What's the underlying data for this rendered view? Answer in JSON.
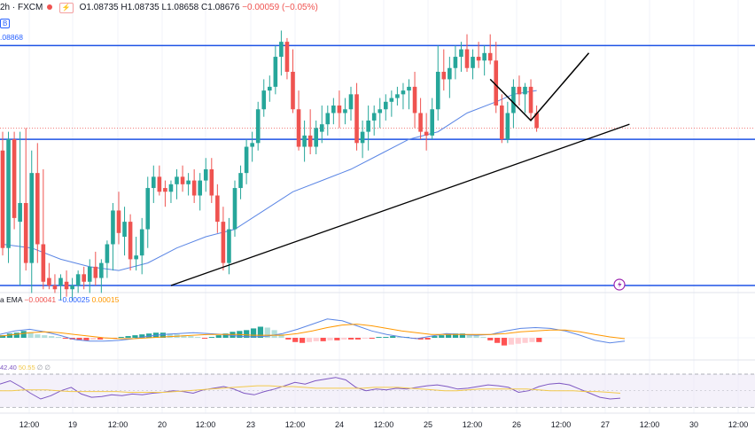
{
  "header": {
    "symbol_suffix": "2h · FXCM",
    "signal_icon": "lightning-badge",
    "open": "O1.08735",
    "high": "H1.08735",
    "low": "L1.08658",
    "close": "C1.08676",
    "change": "−0.00059 (−0.05%)"
  },
  "ema_badge": "B",
  "ema_value": ".08868",
  "macd_header": {
    "label": "a EMA",
    "macd": "−0.00041",
    "signal": "−0.00025",
    "hist": "0.00015"
  },
  "rsi_header": {
    "rsi": "42.40",
    "ma": "50.55",
    "extra": "∅ ∅"
  },
  "colors": {
    "up": "#26a69a",
    "down": "#ef5350",
    "hline": "#1e53e5",
    "ema": "#5b86e5",
    "trend": "#000000",
    "macd": "#5b86e5",
    "signal": "#ff9800",
    "rsi": "#7e57c2",
    "rsi_ma": "#f2c94c"
  },
  "chart_data": [
    {
      "type": "candlestick",
      "title": "",
      "price_range": [
        1.083,
        1.09
      ],
      "horizontal_levels": [
        1.0894,
        1.0869,
        1.083
      ],
      "candles": [
        [
          1.0866,
          1.0871,
          1.0838,
          1.084
        ],
        [
          1.084,
          1.0871,
          1.0836,
          1.0869
        ],
        [
          1.0869,
          1.0871,
          1.0845,
          1.0848
        ],
        [
          1.0847,
          1.0871,
          1.083,
          1.0852
        ],
        [
          1.0852,
          1.0872,
          1.0834,
          1.0836
        ],
        [
          1.0836,
          1.0866,
          1.0828,
          1.086
        ],
        [
          1.086,
          1.0868,
          1.0836,
          1.0841
        ],
        [
          1.0841,
          1.0861,
          1.0829,
          1.0831
        ],
        [
          1.0832,
          1.0836,
          1.0829,
          1.083
        ],
        [
          1.083,
          1.0833,
          1.0828,
          1.0829
        ],
        [
          1.083,
          1.0833,
          1.0826,
          1.0832
        ],
        [
          1.0831,
          1.0834,
          1.0827,
          1.0829
        ],
        [
          1.0829,
          1.0832,
          1.0826,
          1.083
        ],
        [
          1.083,
          1.0834,
          1.0828,
          1.0833
        ],
        [
          1.0833,
          1.0835,
          1.0829,
          1.0831
        ],
        [
          1.0831,
          1.0837,
          1.0828,
          1.0835
        ],
        [
          1.0835,
          1.0839,
          1.083,
          1.0832
        ],
        [
          1.0832,
          1.0837,
          1.0828,
          1.0836
        ],
        [
          1.0836,
          1.0842,
          1.0832,
          1.0841
        ],
        [
          1.0841,
          1.0852,
          1.0834,
          1.085
        ],
        [
          1.085,
          1.0855,
          1.0841,
          1.0844
        ],
        [
          1.0843,
          1.0851,
          1.0838,
          1.0847
        ],
        [
          1.0847,
          1.0849,
          1.0834,
          1.0837
        ],
        [
          1.0837,
          1.0843,
          1.0834,
          1.0838
        ],
        [
          1.0838,
          1.0848,
          1.0833,
          1.0845
        ],
        [
          1.0845,
          1.0859,
          1.084,
          1.0856
        ],
        [
          1.0856,
          1.0862,
          1.0852,
          1.0859
        ],
        [
          1.0859,
          1.0862,
          1.0854,
          1.0855
        ],
        [
          1.0856,
          1.0858,
          1.0851,
          1.0855
        ],
        [
          1.0855,
          1.0858,
          1.0852,
          1.0857
        ],
        [
          1.0857,
          1.0861,
          1.0853,
          1.0859
        ],
        [
          1.0859,
          1.0862,
          1.0855,
          1.0857
        ],
        [
          1.0857,
          1.086,
          1.0854,
          1.0858
        ],
        [
          1.0858,
          1.0861,
          1.0852,
          1.0854
        ],
        [
          1.0854,
          1.086,
          1.085,
          1.0858
        ],
        [
          1.0858,
          1.0864,
          1.0855,
          1.0861
        ],
        [
          1.0861,
          1.0864,
          1.0852,
          1.0854
        ],
        [
          1.0854,
          1.0857,
          1.0844,
          1.0847
        ],
        [
          1.0847,
          1.0851,
          1.0834,
          1.0836
        ],
        [
          1.0836,
          1.0848,
          1.0833,
          1.0845
        ],
        [
          1.0845,
          1.0858,
          1.0843,
          1.0856
        ],
        [
          1.0856,
          1.0862,
          1.0853,
          1.086
        ],
        [
          1.086,
          1.0869,
          1.0857,
          1.0867
        ],
        [
          1.0867,
          1.0871,
          1.0863,
          1.0868
        ],
        [
          1.0868,
          1.0879,
          1.0866,
          1.0877
        ],
        [
          1.0877,
          1.0885,
          1.0875,
          1.0882
        ],
        [
          1.0882,
          1.0886,
          1.0879,
          1.0883
        ],
        [
          1.0883,
          1.0894,
          1.0881,
          1.0891
        ],
        [
          1.0891,
          1.0898,
          1.0886,
          1.0895
        ],
        [
          1.0895,
          1.0896,
          1.0885,
          1.0887
        ],
        [
          1.0887,
          1.0893,
          1.0876,
          1.0877
        ],
        [
          1.0877,
          1.0882,
          1.0866,
          1.0867
        ],
        [
          1.0867,
          1.0874,
          1.0863,
          1.087
        ],
        [
          1.087,
          1.0877,
          1.0865,
          1.0867
        ],
        [
          1.0867,
          1.0874,
          1.0865,
          1.0872
        ],
        [
          1.0871,
          1.0878,
          1.0868,
          1.0873
        ],
        [
          1.0873,
          1.0878,
          1.087,
          1.0876
        ],
        [
          1.0876,
          1.088,
          1.0873,
          1.0878
        ],
        [
          1.0878,
          1.0882,
          1.0872,
          1.0876
        ],
        [
          1.0876,
          1.088,
          1.0873,
          1.0877
        ],
        [
          1.0877,
          1.0883,
          1.0874,
          1.0881
        ],
        [
          1.0881,
          1.0884,
          1.0866,
          1.0868
        ],
        [
          1.0868,
          1.0874,
          1.0864,
          1.0871
        ],
        [
          1.0871,
          1.0878,
          1.0866,
          1.0874
        ],
        [
          1.0874,
          1.0878,
          1.087,
          1.0876
        ],
        [
          1.0876,
          1.088,
          1.0872,
          1.0877
        ],
        [
          1.0877,
          1.0881,
          1.0874,
          1.0879
        ],
        [
          1.0879,
          1.0882,
          1.0875,
          1.088
        ],
        [
          1.088,
          1.0883,
          1.0878,
          1.0881
        ],
        [
          1.0881,
          1.0884,
          1.0877,
          1.0882
        ],
        [
          1.0882,
          1.0885,
          1.0877,
          1.0883
        ],
        [
          1.0883,
          1.0887,
          1.0872,
          1.0876
        ],
        [
          1.0876,
          1.088,
          1.0869,
          1.0871
        ],
        [
          1.0871,
          1.0876,
          1.0866,
          1.087
        ],
        [
          1.087,
          1.088,
          1.0869,
          1.0877
        ],
        [
          1.0877,
          1.0894,
          1.0874,
          1.0887
        ],
        [
          1.0887,
          1.0893,
          1.0882,
          1.0885
        ],
        [
          1.0885,
          1.0891,
          1.088,
          1.0888
        ],
        [
          1.0888,
          1.0894,
          1.0885,
          1.0891
        ],
        [
          1.0891,
          1.0895,
          1.0887,
          1.0893
        ],
        [
          1.0893,
          1.0897,
          1.0887,
          1.0888
        ],
        [
          1.0888,
          1.0893,
          1.0885,
          1.0891
        ],
        [
          1.0891,
          1.0895,
          1.0888,
          1.089
        ],
        [
          1.089,
          1.0894,
          1.0886,
          1.0892
        ],
        [
          1.0892,
          1.0897,
          1.0889,
          1.089
        ],
        [
          1.089,
          1.0895,
          1.0876,
          1.0878
        ],
        [
          1.0878,
          1.0881,
          1.0868,
          1.0869
        ],
        [
          1.0869,
          1.0879,
          1.0868,
          1.0876
        ],
        [
          1.0876,
          1.0885,
          1.0872,
          1.0883
        ],
        [
          1.0883,
          1.0886,
          1.0878,
          1.0881
        ],
        [
          1.0881,
          1.0884,
          1.0876,
          1.0883
        ],
        [
          1.0883,
          1.0885,
          1.0874,
          1.0876
        ],
        [
          1.0876,
          1.0878,
          1.0871,
          1.0872
        ]
      ],
      "ema_line": [
        [
          0,
          1.0841
        ],
        [
          5,
          1.084
        ],
        [
          10,
          1.0837
        ],
        [
          15,
          1.0835
        ],
        [
          20,
          1.0834
        ],
        [
          25,
          1.0836
        ],
        [
          30,
          1.084
        ],
        [
          35,
          1.0843
        ],
        [
          40,
          1.0845
        ],
        [
          45,
          1.085
        ],
        [
          50,
          1.0855
        ],
        [
          55,
          1.0858
        ],
        [
          60,
          1.0861
        ],
        [
          65,
          1.0865
        ],
        [
          70,
          1.0869
        ],
        [
          75,
          1.0871
        ],
        [
          80,
          1.0876
        ],
        [
          85,
          1.0879
        ],
        [
          88,
          1.0881
        ],
        [
          92,
          1.0882
        ]
      ],
      "trend_line": {
        "from_index": 29,
        "from_price": 1.083,
        "to_index": 108,
        "to_price": 1.0873
      },
      "projection_path": [
        [
          84,
          1.0885
        ],
        [
          91,
          1.0874
        ],
        [
          101,
          1.0892
        ]
      ],
      "current_price": 1.0872
    },
    {
      "type": "bar",
      "title": "MACD",
      "histogram": [
        3e-05,
        5e-05,
        6e-05,
        8e-05,
        6e-05,
        4e-05,
        3e-05,
        2e-05,
        1e-05,
        -1e-05,
        -2e-05,
        -3e-05,
        -3e-05,
        -2e-05,
        -2e-05,
        -1e-05,
        -1e-05,
        1e-05,
        2e-05,
        3e-05,
        4e-05,
        5e-05,
        6e-05,
        6e-05,
        5e-05,
        4e-05,
        3e-05,
        2e-05,
        1e-05,
        -1e-05,
        1e-05,
        3e-05,
        5e-05,
        7e-05,
        8e-05,
        9e-05,
        0.00011,
        0.00013,
        0.00012,
        9e-05,
        4e-05,
        -2e-05,
        -5e-05,
        -6e-05,
        -5e-05,
        -4e-05,
        -4e-05,
        -3e-05,
        -3e-05,
        -2e-05,
        -2e-05,
        -2e-05,
        -1e-05,
        -1e-05,
        1e-05,
        1e-05,
        2e-05,
        1e-05,
        1e-05,
        -1e-05,
        -2e-05,
        -2e-05,
        2e-05,
        3e-05,
        4e-05,
        5e-05,
        5e-05,
        4e-05,
        3e-05,
        1e-05,
        -3e-05,
        -6e-05,
        -9e-05,
        -8e-05,
        -7e-05,
        -6e-05,
        -5e-05,
        -5e-05
      ],
      "macd_line": [
        4e-05,
        8e-05,
        0.0001,
        7e-05,
        3e-05,
        -2e-05,
        -4e-05,
        -4e-05,
        -3e-05,
        -1e-05,
        2e-05,
        4e-05,
        5e-05,
        6e-05,
        5e-05,
        4e-05,
        2e-05,
        1e-05,
        2e-05,
        5e-05,
        0.0001,
        0.00016,
        0.00022,
        0.0002,
        0.00014,
        8e-05,
        4e-05,
        1e-05,
        -1e-05,
        2e-05,
        5e-05,
        4e-05,
        3e-05,
        4e-05,
        8e-05,
        0.00011,
        0.00012,
        0.00011,
        8e-05,
        3e-05,
        -3e-05,
        -6e-05,
        -4e-05
      ],
      "signal_line": [
        2e-05,
        4e-05,
        6e-05,
        7e-05,
        6e-05,
        4e-05,
        2e-05,
        0.0,
        -1e-05,
        -1e-05,
        0.0,
        1e-05,
        2e-05,
        3e-05,
        4e-05,
        4e-05,
        4e-05,
        3e-05,
        3e-05,
        3e-05,
        5e-05,
        8e-05,
        0.00012,
        0.00015,
        0.00016,
        0.00014,
        0.00011,
        8e-05,
        6e-05,
        4e-05,
        4e-05,
        4e-05,
        4e-05,
        4e-05,
        5e-05,
        7e-05,
        8e-05,
        9e-05,
        9e-05,
        7e-05,
        4e-05,
        1e-05,
        -1e-05
      ],
      "ylim": [
        -0.00026,
        0.00026
      ]
    },
    {
      "type": "line",
      "title": "RSI",
      "rsi": [
        58,
        62,
        55,
        47,
        40,
        44,
        50,
        54,
        46,
        42,
        43,
        45,
        44,
        46,
        45,
        47,
        48,
        50,
        49,
        47,
        51,
        53,
        55,
        52,
        47,
        45,
        49,
        52,
        56,
        60,
        58,
        62,
        64,
        66,
        63,
        54,
        50,
        52,
        51,
        53,
        52,
        54,
        56,
        57,
        55,
        52,
        53,
        55,
        57,
        56,
        54,
        48,
        50,
        55,
        58,
        59,
        57,
        52,
        47,
        42,
        40,
        41
      ],
      "rsi_ma": [
        50,
        50,
        51,
        51,
        51,
        50,
        49,
        49,
        49,
        49,
        49,
        48,
        48,
        48,
        48,
        49,
        50,
        51,
        52,
        53,
        54,
        55,
        56,
        56,
        55,
        55,
        54,
        53,
        53,
        53,
        53,
        53,
        54,
        54,
        54,
        53,
        52,
        51,
        50,
        50,
        51,
        52,
        52,
        52,
        52,
        52,
        51,
        50,
        50,
        50,
        49,
        49,
        48,
        47
      ],
      "ylim": [
        25,
        85
      ],
      "bands": [
        30,
        70
      ]
    }
  ],
  "x_axis_labels": [
    "12:00",
    "19",
    "12:00",
    "20",
    "12:00",
    "23",
    "12:00",
    "24",
    "12:00",
    "25",
    "12:00",
    "26",
    "12:00",
    "27",
    "12:00",
    "30",
    "12:00"
  ]
}
